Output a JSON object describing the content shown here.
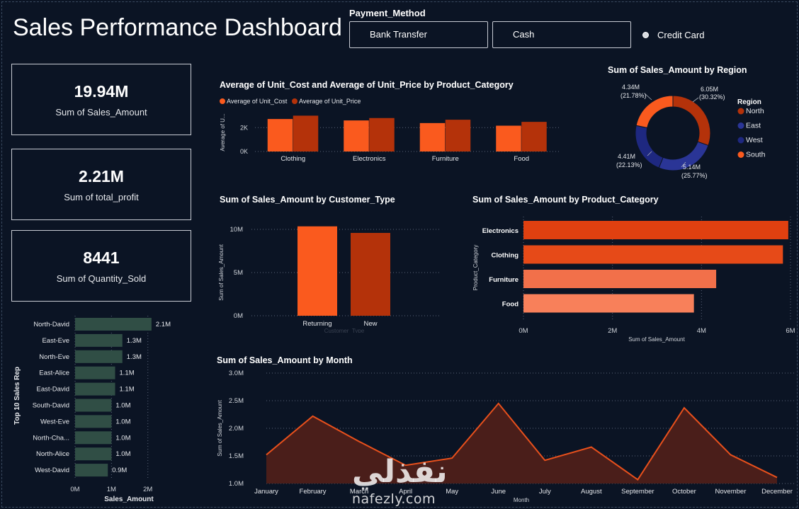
{
  "page": {
    "title": "Sales Performance Dashboard"
  },
  "slicer": {
    "title": "Payment_Method",
    "options": [
      "Bank Transfer",
      "Cash",
      "Credit Card"
    ]
  },
  "kpis": [
    {
      "value": "19.94M",
      "label": "Sum of Sales_Amount"
    },
    {
      "value": "2.21M",
      "label": "Sum of total_profit"
    },
    {
      "value": "8441",
      "label": "Sum of Quantity_Sold"
    }
  ],
  "colors": {
    "orange": "#fa5a1e",
    "dark_orange": "#b4320a",
    "navy": "#1e2880",
    "green_bar": "#304e45",
    "area_fill": "#4a1e1a",
    "area_line": "#e8501c",
    "background": "#0b1424"
  },
  "watermark": {
    "arabic": "نفذلي",
    "latin": "nafezly.com"
  },
  "chart_data": [
    {
      "id": "cost_price",
      "type": "bar",
      "title": "Average of Unit_Cost and Average of Unit_Price by Product_Category",
      "ylabel": "Average of U...",
      "yticks": [
        "0K",
        "2K"
      ],
      "ylim": [
        0,
        3200
      ],
      "categories": [
        "Clothing",
        "Electronics",
        "Furniture",
        "Food"
      ],
      "series": [
        {
          "name": "Average of Unit_Cost",
          "values": [
            2720,
            2600,
            2380,
            2160
          ]
        },
        {
          "name": "Average of Unit_Price",
          "values": [
            3000,
            2800,
            2660,
            2480
          ]
        }
      ],
      "legend": "top-left"
    },
    {
      "id": "region",
      "type": "pie",
      "title": "Sum of Sales_Amount by Region",
      "legend_title": "Region",
      "slices": [
        {
          "name": "North",
          "value": 6.05,
          "label": "6.05M",
          "pct": "(30.32%)"
        },
        {
          "name": "East",
          "value": 5.14,
          "label": "5.14M",
          "pct": "(25.77%)"
        },
        {
          "name": "West",
          "value": 4.41,
          "label": "4.41M",
          "pct": "(22.13%)"
        },
        {
          "name": "South",
          "value": 4.34,
          "label": "4.34M",
          "pct": "(21.78%)"
        }
      ],
      "legend": "right"
    },
    {
      "id": "customer_type",
      "type": "bar",
      "title": "Sum of Sales_Amount by Customer_Type",
      "ylabel": "Sum of Sales_Amount",
      "xlabel": "Customer_Type",
      "yticks": [
        "0M",
        "5M",
        "10M"
      ],
      "ylim": [
        0,
        10
      ],
      "categories": [
        "Returning",
        "New"
      ],
      "values": [
        10.35,
        9.59
      ]
    },
    {
      "id": "product_category",
      "type": "bar",
      "orientation": "horizontal",
      "title": "Sum of Sales_Amount by Product_Category",
      "ylabel": "Product_Category",
      "xlabel": "Sum of Sales_Amount",
      "xticks": [
        "0M",
        "2M",
        "4M",
        "6M"
      ],
      "xlim": [
        0,
        6
      ],
      "categories": [
        "Electronics",
        "Clothing",
        "Furniture",
        "Food"
      ],
      "values": [
        5.95,
        5.83,
        4.33,
        3.83
      ]
    },
    {
      "id": "sales_rep",
      "type": "bar",
      "orientation": "horizontal",
      "ylabel": "Top 10 Sales Rep",
      "xlabel": "Sales_Amount",
      "xticks": [
        "0M",
        "1M",
        "2M"
      ],
      "xlim": [
        0,
        2.2
      ],
      "categories": [
        "North-David",
        "East-Eve",
        "North-Eve",
        "East-Alice",
        "East-David",
        "South-David",
        "West-Eve",
        "North-Cha...",
        "North-Alice",
        "West-David"
      ],
      "values": [
        2.1,
        1.3,
        1.3,
        1.1,
        1.1,
        1.0,
        1.0,
        1.0,
        1.0,
        0.9
      ],
      "labels": [
        "2.1M",
        "1.3M",
        "1.3M",
        "1.1M",
        "1.1M",
        "1.0M",
        "1.0M",
        "1.0M",
        "1.0M",
        "0.9M"
      ]
    },
    {
      "id": "month",
      "type": "area",
      "title": "Sum of Sales_Amount by Month",
      "ylabel": "Sum of Sales_Amount",
      "xlabel": "Month",
      "yticks": [
        "1.0M",
        "1.5M",
        "2.0M",
        "2.5M",
        "3.0M"
      ],
      "ylim": [
        1.0,
        3.0
      ],
      "categories": [
        "January",
        "February",
        "March",
        "April",
        "May",
        "June",
        "July",
        "August",
        "September",
        "October",
        "November",
        "December"
      ],
      "values": [
        1.52,
        2.22,
        1.76,
        1.33,
        1.46,
        2.45,
        1.42,
        1.66,
        1.07,
        2.37,
        1.52,
        1.11
      ]
    }
  ]
}
